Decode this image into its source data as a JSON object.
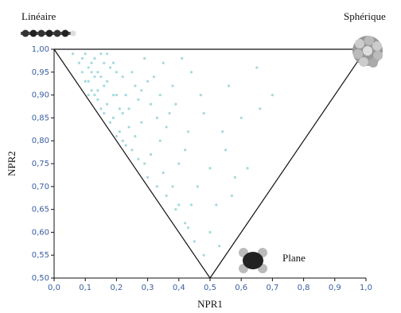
{
  "chart_data": {
    "type": "scatter",
    "annotations": [
      "Linéaire",
      "Sphérique",
      "Plane"
    ],
    "xlabel": "NPR1",
    "ylabel": "NPR2",
    "color": "#a4dadd",
    "xlim": [
      0,
      1
    ],
    "ylim": [
      0.5,
      1
    ],
    "xticks": [
      {
        "value": 0,
        "label": "0,0"
      },
      {
        "value": 0.1,
        "label": "0,1"
      },
      {
        "value": 0.2,
        "label": "0,2"
      },
      {
        "value": 0.3,
        "label": "0,3"
      },
      {
        "value": 0.4,
        "label": "0,4"
      },
      {
        "value": 0.5,
        "label": "0,5"
      },
      {
        "value": 0.6,
        "label": "0,6"
      },
      {
        "value": 0.7,
        "label": "0,7"
      },
      {
        "value": 0.8,
        "label": "0,8"
      },
      {
        "value": 0.9,
        "label": "0,9"
      },
      {
        "value": 1,
        "label": "1,0"
      }
    ],
    "yticks": [
      {
        "value": 0.5,
        "label": "0,50"
      },
      {
        "value": 0.55,
        "label": "0,55"
      },
      {
        "value": 0.6,
        "label": "0,60"
      },
      {
        "value": 0.65,
        "label": "0,65"
      },
      {
        "value": 0.7,
        "label": "0,70"
      },
      {
        "value": 0.75,
        "label": "0,75"
      },
      {
        "value": 0.8,
        "label": "0,80"
      },
      {
        "value": 0.85,
        "label": "0,85"
      },
      {
        "value": 0.9,
        "label": "0,90"
      },
      {
        "value": 0.95,
        "label": "0,95"
      },
      {
        "value": 1,
        "label": "1,00"
      }
    ],
    "x": [
      0.06,
      0.08,
      0.09,
      0.1,
      0.11,
      0.12,
      0.13,
      0.14,
      0.15,
      0.16,
      0.17,
      0.18,
      0.19,
      0.2,
      0.21,
      0.22,
      0.23,
      0.24,
      0.25,
      0.26,
      0.27,
      0.28,
      0.3,
      0.31,
      0.33,
      0.34,
      0.36,
      0.37,
      0.39,
      0.4,
      0.42,
      0.43,
      0.45,
      0.46,
      0.48,
      0.5,
      0.52,
      0.55,
      0.58,
      0.6,
      0.65,
      0.7,
      0.66,
      0.56,
      0.53,
      0.47,
      0.44,
      0.41,
      0.38,
      0.35,
      0.32,
      0.29,
      0.12,
      0.1,
      0.13,
      0.15,
      0.16,
      0.18,
      0.2,
      0.14,
      0.11,
      0.17,
      0.19,
      0.21,
      0.22,
      0.24,
      0.25,
      0.27,
      0.29,
      0.31,
      0.33,
      0.35,
      0.38,
      0.4,
      0.43,
      0.28,
      0.23,
      0.19,
      0.15,
      0.13,
      0.09,
      0.12,
      0.17,
      0.26,
      0.3,
      0.36,
      0.42,
      0.5,
      0.48,
      0.57,
      0.62,
      0.54,
      0.44,
      0.39,
      0.34,
      0.22,
      0.2,
      0.16,
      0.14,
      0.11
    ],
    "values": [
      0.99,
      0.97,
      0.95,
      0.99,
      0.93,
      0.97,
      0.9,
      0.95,
      0.99,
      0.92,
      0.88,
      0.96,
      0.85,
      0.9,
      0.82,
      0.94,
      0.79,
      0.87,
      0.78,
      0.92,
      0.76,
      0.84,
      0.72,
      0.88,
      0.7,
      0.8,
      0.68,
      0.86,
      0.65,
      0.75,
      0.62,
      0.82,
      0.58,
      0.7,
      0.55,
      0.6,
      0.66,
      0.78,
      0.72,
      0.85,
      0.96,
      0.9,
      0.87,
      0.92,
      0.57,
      0.9,
      0.95,
      0.98,
      0.92,
      0.97,
      0.94,
      0.98,
      0.91,
      0.93,
      0.98,
      0.94,
      0.86,
      0.84,
      0.81,
      0.89,
      0.96,
      0.93,
      0.97,
      0.87,
      0.8,
      0.83,
      0.95,
      0.89,
      0.75,
      0.77,
      0.85,
      0.73,
      0.7,
      0.66,
      0.61,
      0.91,
      0.9,
      0.9,
      0.87,
      0.94,
      0.98,
      0.95,
      0.99,
      0.81,
      0.93,
      0.83,
      0.78,
      0.74,
      0.86,
      0.68,
      0.74,
      0.82,
      0.66,
      0.88,
      0.9,
      0.86,
      0.95,
      0.97,
      0.91,
      0.9
    ]
  }
}
